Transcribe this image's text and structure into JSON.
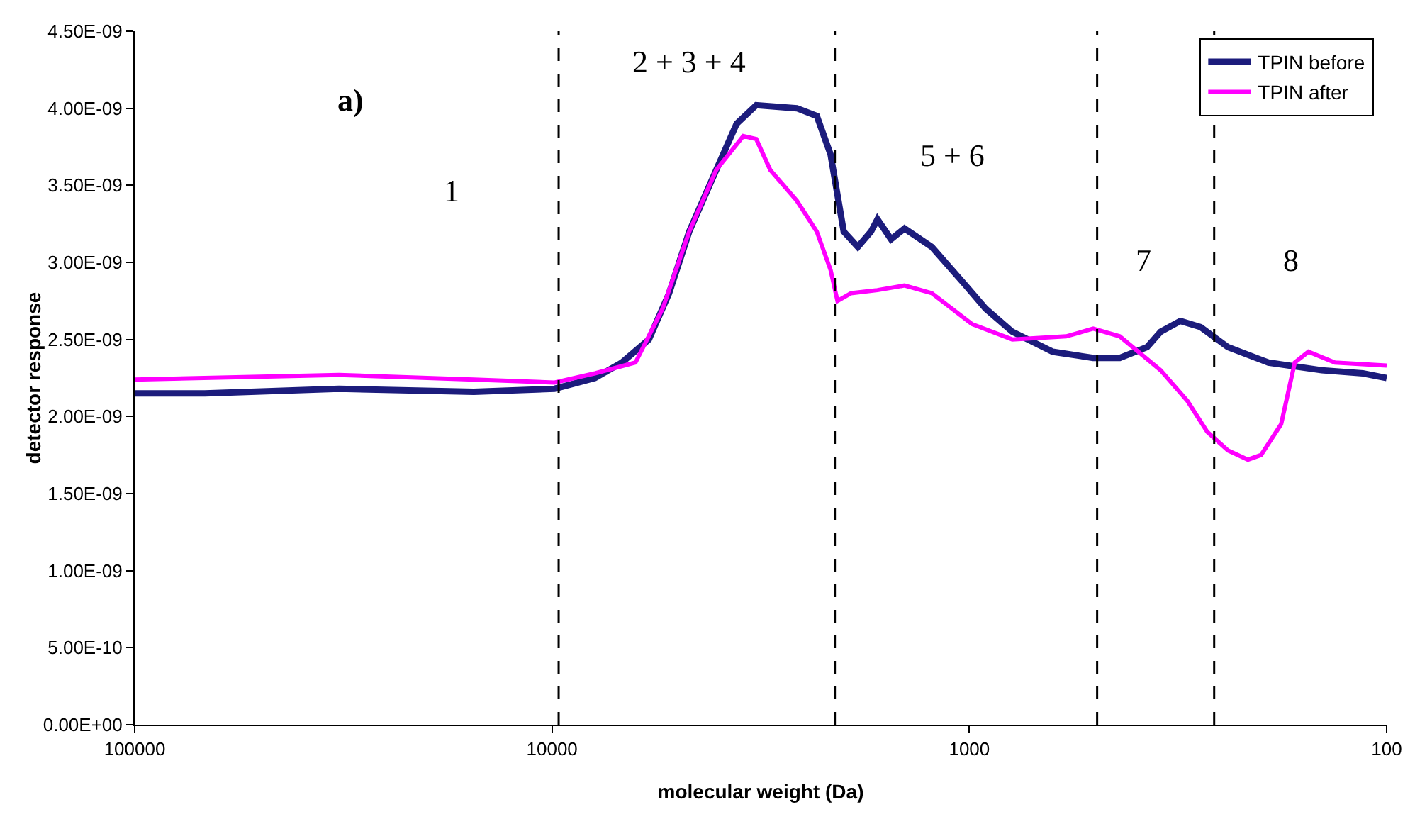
{
  "chart_data": {
    "type": "line",
    "xlabel": "molecular weight (Da)",
    "ylabel": "detector response",
    "log": "x",
    "xlim": [
      100000,
      100
    ],
    "xticks": [
      100000,
      10000,
      1000,
      100
    ],
    "ylim": [
      0,
      4.5e-09
    ],
    "yticks": [
      {
        "value": 0,
        "label": "0.00E+00"
      },
      {
        "value": 5e-10,
        "label": "5.00E-10"
      },
      {
        "value": 1e-09,
        "label": "1.00E-09"
      },
      {
        "value": 1.5e-09,
        "label": "1.50E-09"
      },
      {
        "value": 2e-09,
        "label": "2.00E-09"
      },
      {
        "value": 2.5e-09,
        "label": "2.50E-09"
      },
      {
        "value": 3e-09,
        "label": "3.00E-09"
      },
      {
        "value": 3.5e-09,
        "label": "3.50E-09"
      },
      {
        "value": 4e-09,
        "label": "4.00E-09"
      },
      {
        "value": 4.5e-09,
        "label": "4.50E-09"
      }
    ],
    "grid": false,
    "legend": "top right",
    "marker": "none",
    "line_style": "solid",
    "series": [
      {
        "name": "TPIN before",
        "color": "#1c1c7c",
        "x": [
          100000,
          67900,
          32400,
          15400,
          9860,
          7890,
          6800,
          5860,
          5240,
          4690,
          4040,
          3610,
          3240,
          2590,
          2320,
          2150,
          2000,
          1850,
          1720,
          1660,
          1540,
          1430,
          1230,
          1020,
          914,
          789,
          631,
          505,
          436,
          375,
          348,
          312,
          279,
          240,
          192,
          143,
          114,
          100
        ],
        "values": [
          2.15e-09,
          2.15e-09,
          2.18e-09,
          2.16e-09,
          2.18e-09,
          2.25e-09,
          2.35e-09,
          2.5e-09,
          2.8e-09,
          3.2e-09,
          3.6e-09,
          3.9e-09,
          4.02e-09,
          4e-09,
          3.95e-09,
          3.7e-09,
          3.2e-09,
          3.1e-09,
          3.2e-09,
          3.28e-09,
          3.15e-09,
          3.22e-09,
          3.1e-09,
          2.85e-09,
          2.7e-09,
          2.55e-09,
          2.42e-09,
          2.38e-09,
          2.38e-09,
          2.45e-09,
          2.55e-09,
          2.62e-09,
          2.58e-09,
          2.45e-09,
          2.35e-09,
          2.3e-09,
          2.28e-09,
          2.25e-09
        ]
      },
      {
        "name": "TPIN after",
        "color": "#ff00ff",
        "x": [
          100000,
          32400,
          15400,
          9860,
          7890,
          6310,
          5430,
          4690,
          4040,
          3480,
          3240,
          3000,
          2590,
          2320,
          2150,
          2070,
          1920,
          1660,
          1430,
          1230,
          986,
          789,
          586,
          505,
          436,
          348,
          300,
          269,
          240,
          215,
          200,
          179,
          166,
          154,
          133,
          100
        ],
        "values": [
          2.24e-09,
          2.27e-09,
          2.24e-09,
          2.22e-09,
          2.28e-09,
          2.35e-09,
          2.7e-09,
          3.2e-09,
          3.6e-09,
          3.82e-09,
          3.8e-09,
          3.6e-09,
          3.4e-09,
          3.2e-09,
          2.95e-09,
          2.75e-09,
          2.8e-09,
          2.82e-09,
          2.85e-09,
          2.8e-09,
          2.6e-09,
          2.5e-09,
          2.52e-09,
          2.57e-09,
          2.52e-09,
          2.3e-09,
          2.1e-09,
          1.9e-09,
          1.78e-09,
          1.72e-09,
          1.75e-09,
          1.95e-09,
          2.35e-09,
          2.42e-09,
          2.35e-09,
          2.33e-09
        ]
      }
    ],
    "ref_lines": [
      {
        "axis": "x",
        "value": 9640,
        "line_style": "dashed",
        "color": "#000000"
      },
      {
        "axis": "x",
        "value": 2100,
        "line_style": "dashed",
        "color": "#000000"
      },
      {
        "axis": "x",
        "value": 494,
        "line_style": "dashed",
        "color": "#000000"
      },
      {
        "axis": "x",
        "value": 259,
        "line_style": "dashed",
        "color": "#000000"
      }
    ],
    "annotations": [
      "a)",
      "1",
      "2 + 3 + 4",
      "5 + 6",
      "7",
      "8"
    ]
  }
}
